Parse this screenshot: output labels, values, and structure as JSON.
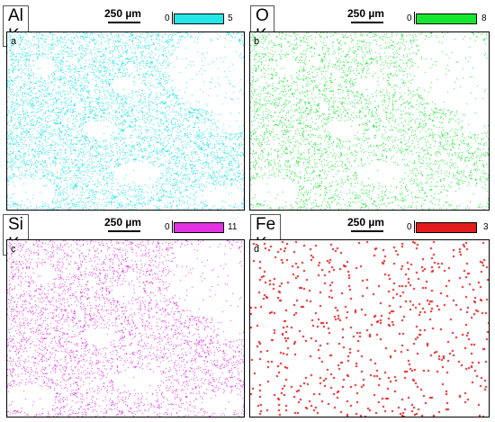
{
  "scale_bar_label": "250 µm",
  "panels": [
    {
      "element": "Al K",
      "letter": "a",
      "cbar_min": "0",
      "cbar_max": "5",
      "color": "#25e6e6",
      "density": 0.55,
      "style": "dense"
    },
    {
      "element": "O K",
      "letter": "b",
      "cbar_min": "0",
      "cbar_max": "8",
      "color": "#13e82e",
      "density": 0.6,
      "style": "dense"
    },
    {
      "element": "Si K",
      "letter": "c",
      "cbar_min": "0",
      "cbar_max": "11",
      "color": "#e332e3",
      "density": 0.7,
      "style": "dense"
    },
    {
      "element": "Fe K",
      "letter": "d",
      "cbar_min": "0",
      "cbar_max": "3",
      "color": "#e31b1b",
      "density": 0.012,
      "style": "sparse"
    }
  ]
}
